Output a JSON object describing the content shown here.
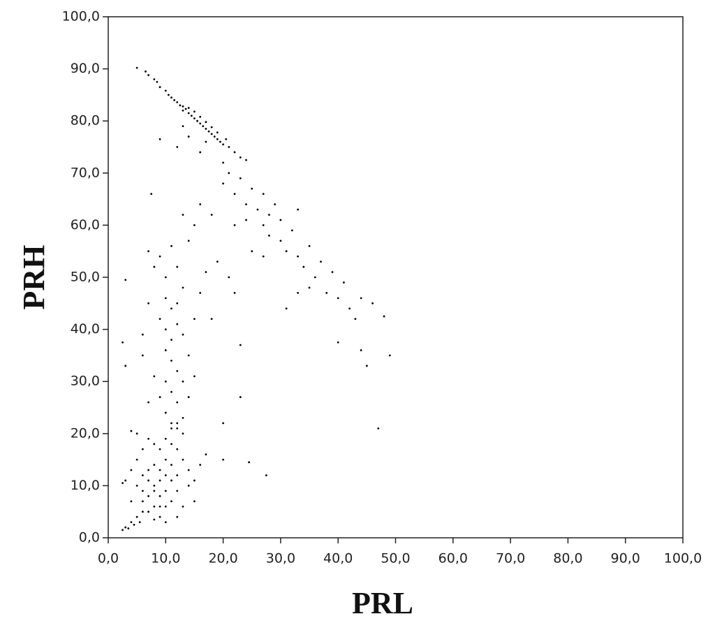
{
  "chart_data": {
    "type": "scatter",
    "x_label": "PRL",
    "y_label": "PRH",
    "color": "#000000",
    "xlim": [
      0,
      100
    ],
    "ylim": [
      0,
      100
    ],
    "xticks": [
      {
        "value": 0,
        "label": "0,0"
      },
      {
        "value": 10,
        "label": "10,0"
      },
      {
        "value": 20,
        "label": "20,0"
      },
      {
        "value": 30,
        "label": "30,0"
      },
      {
        "value": 40,
        "label": "40,0"
      },
      {
        "value": 50,
        "label": "50,0"
      },
      {
        "value": 60,
        "label": "60,0"
      },
      {
        "value": 70,
        "label": "70,0"
      },
      {
        "value": 80,
        "label": "80,0"
      },
      {
        "value": 90,
        "label": "90,0"
      },
      {
        "value": 100,
        "label": "100,0"
      }
    ],
    "yticks": [
      {
        "value": 0,
        "label": "0,0"
      },
      {
        "value": 10,
        "label": "10,0"
      },
      {
        "value": 20,
        "label": "20,0"
      },
      {
        "value": 30,
        "label": "30,0"
      },
      {
        "value": 40,
        "label": "40,0"
      },
      {
        "value": 50,
        "label": "50,0"
      },
      {
        "value": 60,
        "label": "60,0"
      },
      {
        "value": 70,
        "label": "70,0"
      },
      {
        "value": 80,
        "label": "80,0"
      },
      {
        "value": 90,
        "label": "90,0"
      },
      {
        "value": 100,
        "label": "100,0"
      }
    ],
    "x": [
      5,
      6.5,
      7,
      8,
      8.5,
      9,
      10,
      10.5,
      11,
      11.5,
      12,
      12.5,
      13,
      13,
      13.5,
      14,
      14,
      14.5,
      15,
      15,
      15.5,
      16,
      16,
      16.5,
      17,
      17,
      17.5,
      18,
      18,
      18.5,
      19,
      19,
      19.5,
      20,
      20.5,
      21,
      22,
      23,
      24,
      9,
      12,
      14,
      16,
      13,
      17,
      20,
      20,
      21,
      22,
      23,
      24,
      25,
      24,
      26,
      27,
      27,
      28,
      28,
      29,
      30,
      30,
      31,
      32,
      33,
      33,
      34,
      35,
      36,
      35,
      37,
      38,
      39,
      40,
      41,
      42,
      43,
      44,
      46,
      48,
      31,
      33,
      25,
      27,
      18,
      16,
      22,
      19,
      21,
      22,
      18,
      7,
      8,
      9,
      10,
      11,
      12,
      13,
      10,
      11,
      12,
      9,
      10,
      11,
      12,
      13,
      10,
      11,
      12,
      10,
      11,
      12,
      13,
      9,
      10,
      11,
      12,
      13,
      14,
      15,
      14,
      15,
      16,
      17,
      6,
      7,
      8,
      7,
      14,
      15,
      13,
      9,
      8,
      10,
      9,
      8,
      10,
      7,
      11,
      9,
      8,
      10,
      11,
      7,
      6,
      12,
      12,
      11,
      9,
      8,
      7,
      6,
      5,
      4,
      3,
      2.5,
      3.5,
      4.5,
      5.5,
      6,
      5,
      4,
      5,
      6,
      7,
      8,
      9,
      10,
      11,
      12,
      13,
      13,
      14,
      14,
      15,
      16,
      13,
      12,
      10,
      15,
      17,
      9,
      7,
      6,
      10,
      8,
      11,
      12,
      4,
      3,
      5,
      47,
      49,
      45,
      44,
      40,
      27.5,
      24.5,
      20,
      20,
      23,
      23,
      3,
      2.5,
      3,
      7.5,
      6,
      4,
      2.5
    ],
    "values": [
      90.2,
      89.5,
      88.8,
      88,
      87.5,
      86.5,
      85.8,
      85,
      84.5,
      84,
      83.6,
      83,
      82.8,
      82,
      82.3,
      81.5,
      82.5,
      81,
      80.5,
      81.8,
      80,
      79.5,
      80.8,
      79,
      78.5,
      79.8,
      78,
      77.5,
      78.8,
      77,
      76.5,
      77.8,
      76,
      75.5,
      76.5,
      75,
      74,
      73,
      72.5,
      76.5,
      75,
      77,
      74,
      79,
      76,
      72,
      68,
      70,
      66,
      69,
      64,
      67,
      61,
      63,
      66,
      60,
      58,
      62,
      64,
      57,
      61,
      55,
      59,
      54,
      63,
      52,
      56,
      50,
      48,
      53,
      47,
      51,
      46,
      49,
      44,
      42,
      46,
      45,
      42.5,
      44,
      47,
      55,
      54,
      62,
      64,
      60,
      53,
      50,
      47,
      42,
      55,
      52,
      54,
      50,
      56,
      52,
      48,
      46,
      44,
      45,
      42,
      40,
      38,
      41,
      39,
      36,
      34,
      32,
      30,
      28,
      26,
      30,
      27,
      24,
      22,
      21,
      23,
      27,
      31,
      35,
      42,
      47,
      51,
      35,
      26,
      31,
      45,
      57,
      60,
      62,
      11,
      10,
      12,
      13,
      9,
      9,
      11,
      11,
      8,
      14,
      15,
      14,
      8,
      9,
      12,
      9,
      7,
      6,
      6,
      5,
      5,
      4,
      3,
      2,
      1.5,
      1.8,
      2.5,
      3,
      7,
      10,
      13,
      15,
      17,
      19,
      18,
      17,
      19,
      18,
      17,
      15,
      20,
      13,
      10,
      11,
      14,
      6,
      4,
      3,
      7,
      16,
      4,
      13,
      12,
      6,
      3.5,
      21,
      22,
      7,
      11,
      20,
      21,
      35,
      33,
      36,
      37.5,
      12,
      14.5,
      15,
      22,
      27,
      37,
      49.5,
      37.5,
      33,
      66,
      39,
      20.5,
      10.5
    ]
  }
}
